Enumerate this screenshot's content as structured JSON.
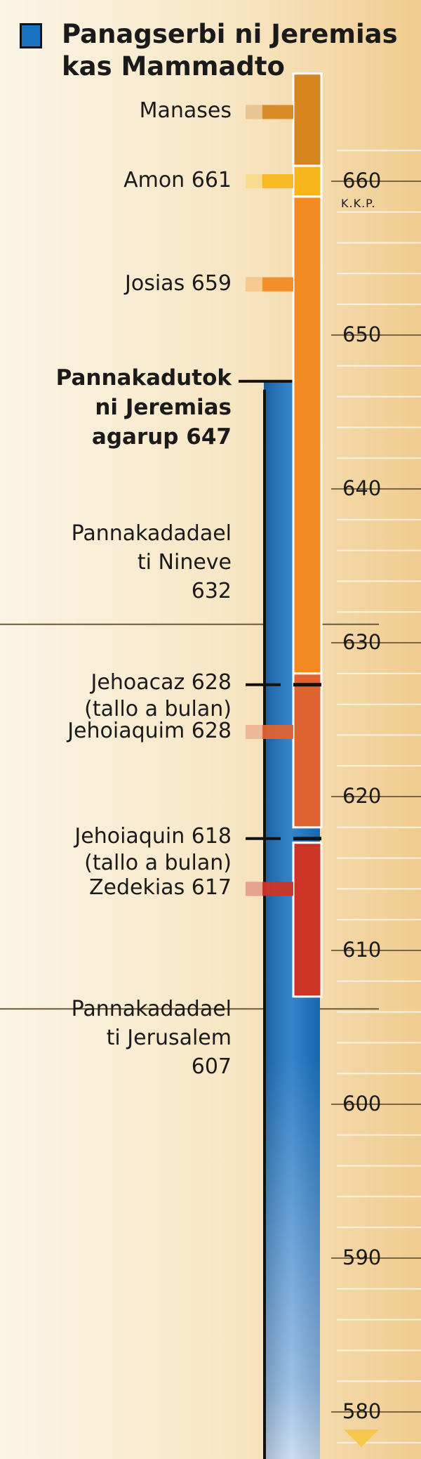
{
  "legend": {
    "label": "Panagserbi ni Jeremias kas Mammadto",
    "color": "#1a73c2"
  },
  "unit": "K.K.P.",
  "axis": {
    "top_year": 667,
    "bottom_year": 575,
    "ticks": [
      660,
      650,
      640,
      630,
      620,
      610,
      600,
      590,
      580
    ]
  },
  "service": {
    "start": 647,
    "end": 576,
    "color": "#1a73c2"
  },
  "kings": [
    {
      "name": "Manases",
      "start": 667,
      "end": 661,
      "color": "#d6861f",
      "label": "Manases"
    },
    {
      "name": "Amon",
      "start": 661,
      "end": 659,
      "color": "#f7b71c",
      "label": "Amon 661"
    },
    {
      "name": "Josias",
      "start": 659,
      "end": 628,
      "color": "#f28b22",
      "label": "Josias 659"
    },
    {
      "name": "Jehoiaquim",
      "start": 628,
      "end": 618,
      "color": "#de6330",
      "label": "Jehoiaquim 628"
    },
    {
      "name": "Zedekias",
      "start": 617,
      "end": 607,
      "color": "#cc3526",
      "label": "Zedekias 617"
    }
  ],
  "short_reigns": [
    {
      "year": 628,
      "line1": "Jehoacaz 628",
      "line2": "(tallo a bulan)"
    },
    {
      "year": 618,
      "line1": "Jehoiaquin 618",
      "line2": "(tallo a bulan)"
    }
  ],
  "events": [
    {
      "line1": "Pannakadutok",
      "line2": "ni Jeremias",
      "line3": "agarup 647"
    },
    {
      "year": 632,
      "line1": "Pannakadadael",
      "line2": "ti Nineve",
      "line3": "632"
    },
    {
      "year": 607,
      "line1": "Pannakadadael",
      "line2": "ti Jerusalem",
      "line3": "607"
    }
  ]
}
